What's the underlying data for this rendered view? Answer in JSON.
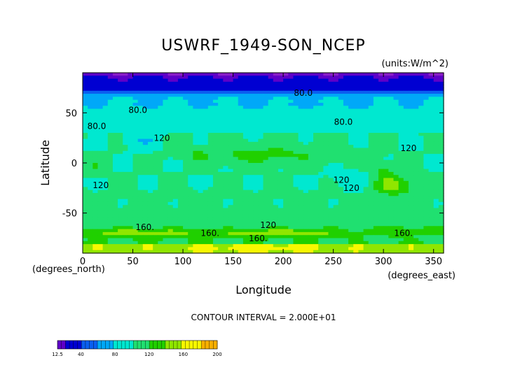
{
  "chart_data": {
    "type": "heatmap",
    "title": "USWRF_1949-SON_NCEP",
    "units": "(units:W/m^2)",
    "xlabel": "Longitude",
    "ylabel": "Latitude",
    "x_note": "(degrees_east)",
    "y_note": "(degrees_north)",
    "xlim": [
      0,
      360
    ],
    "ylim": [
      -90,
      90
    ],
    "xticks": [
      0,
      50,
      100,
      150,
      200,
      250,
      300,
      350
    ],
    "yticks": [
      50,
      0,
      -50
    ],
    "contour_interval": "CONTOUR INTERVAL = 2.000E+01",
    "colorbar": {
      "tick_labels": [
        "12.5",
        "40",
        "80",
        "120",
        "160",
        "200"
      ],
      "tick_values": [
        12.5,
        40,
        80,
        120,
        160,
        200
      ],
      "levels": [
        12.5,
        20,
        40,
        60,
        80,
        100,
        120,
        140,
        160,
        180,
        200
      ],
      "colors": [
        "#8a1ec8",
        "#5f00c8",
        "#0000d2",
        "#0a5ff0",
        "#00a8f8",
        "#00e8d0",
        "#20e070",
        "#20d000",
        "#90e600",
        "#f8f800",
        "#f8b000",
        "#f05000",
        "#e00010"
      ]
    },
    "contour_labels": [
      {
        "text": "80.0",
        "lon": 220,
        "lat": 67
      },
      {
        "text": "80.0",
        "lon": 55,
        "lat": 50
      },
      {
        "text": "80.0",
        "lon": 14,
        "lat": 34
      },
      {
        "text": "80.0",
        "lon": 260,
        "lat": 38
      },
      {
        "text": "120",
        "lon": 79,
        "lat": 22
      },
      {
        "text": "120",
        "lon": 325,
        "lat": 12
      },
      {
        "text": "120",
        "lon": 18,
        "lat": -25
      },
      {
        "text": "120",
        "lon": 258,
        "lat": -20
      },
      {
        "text": "120",
        "lon": 268,
        "lat": -28
      },
      {
        "text": "120",
        "lon": 185,
        "lat": -65
      },
      {
        "text": "160.",
        "lon": 62,
        "lat": -67
      },
      {
        "text": "160.",
        "lon": 127,
        "lat": -73
      },
      {
        "text": "160.",
        "lon": 175,
        "lat": -78
      },
      {
        "text": "160.",
        "lon": 320,
        "lat": -73
      }
    ]
  }
}
